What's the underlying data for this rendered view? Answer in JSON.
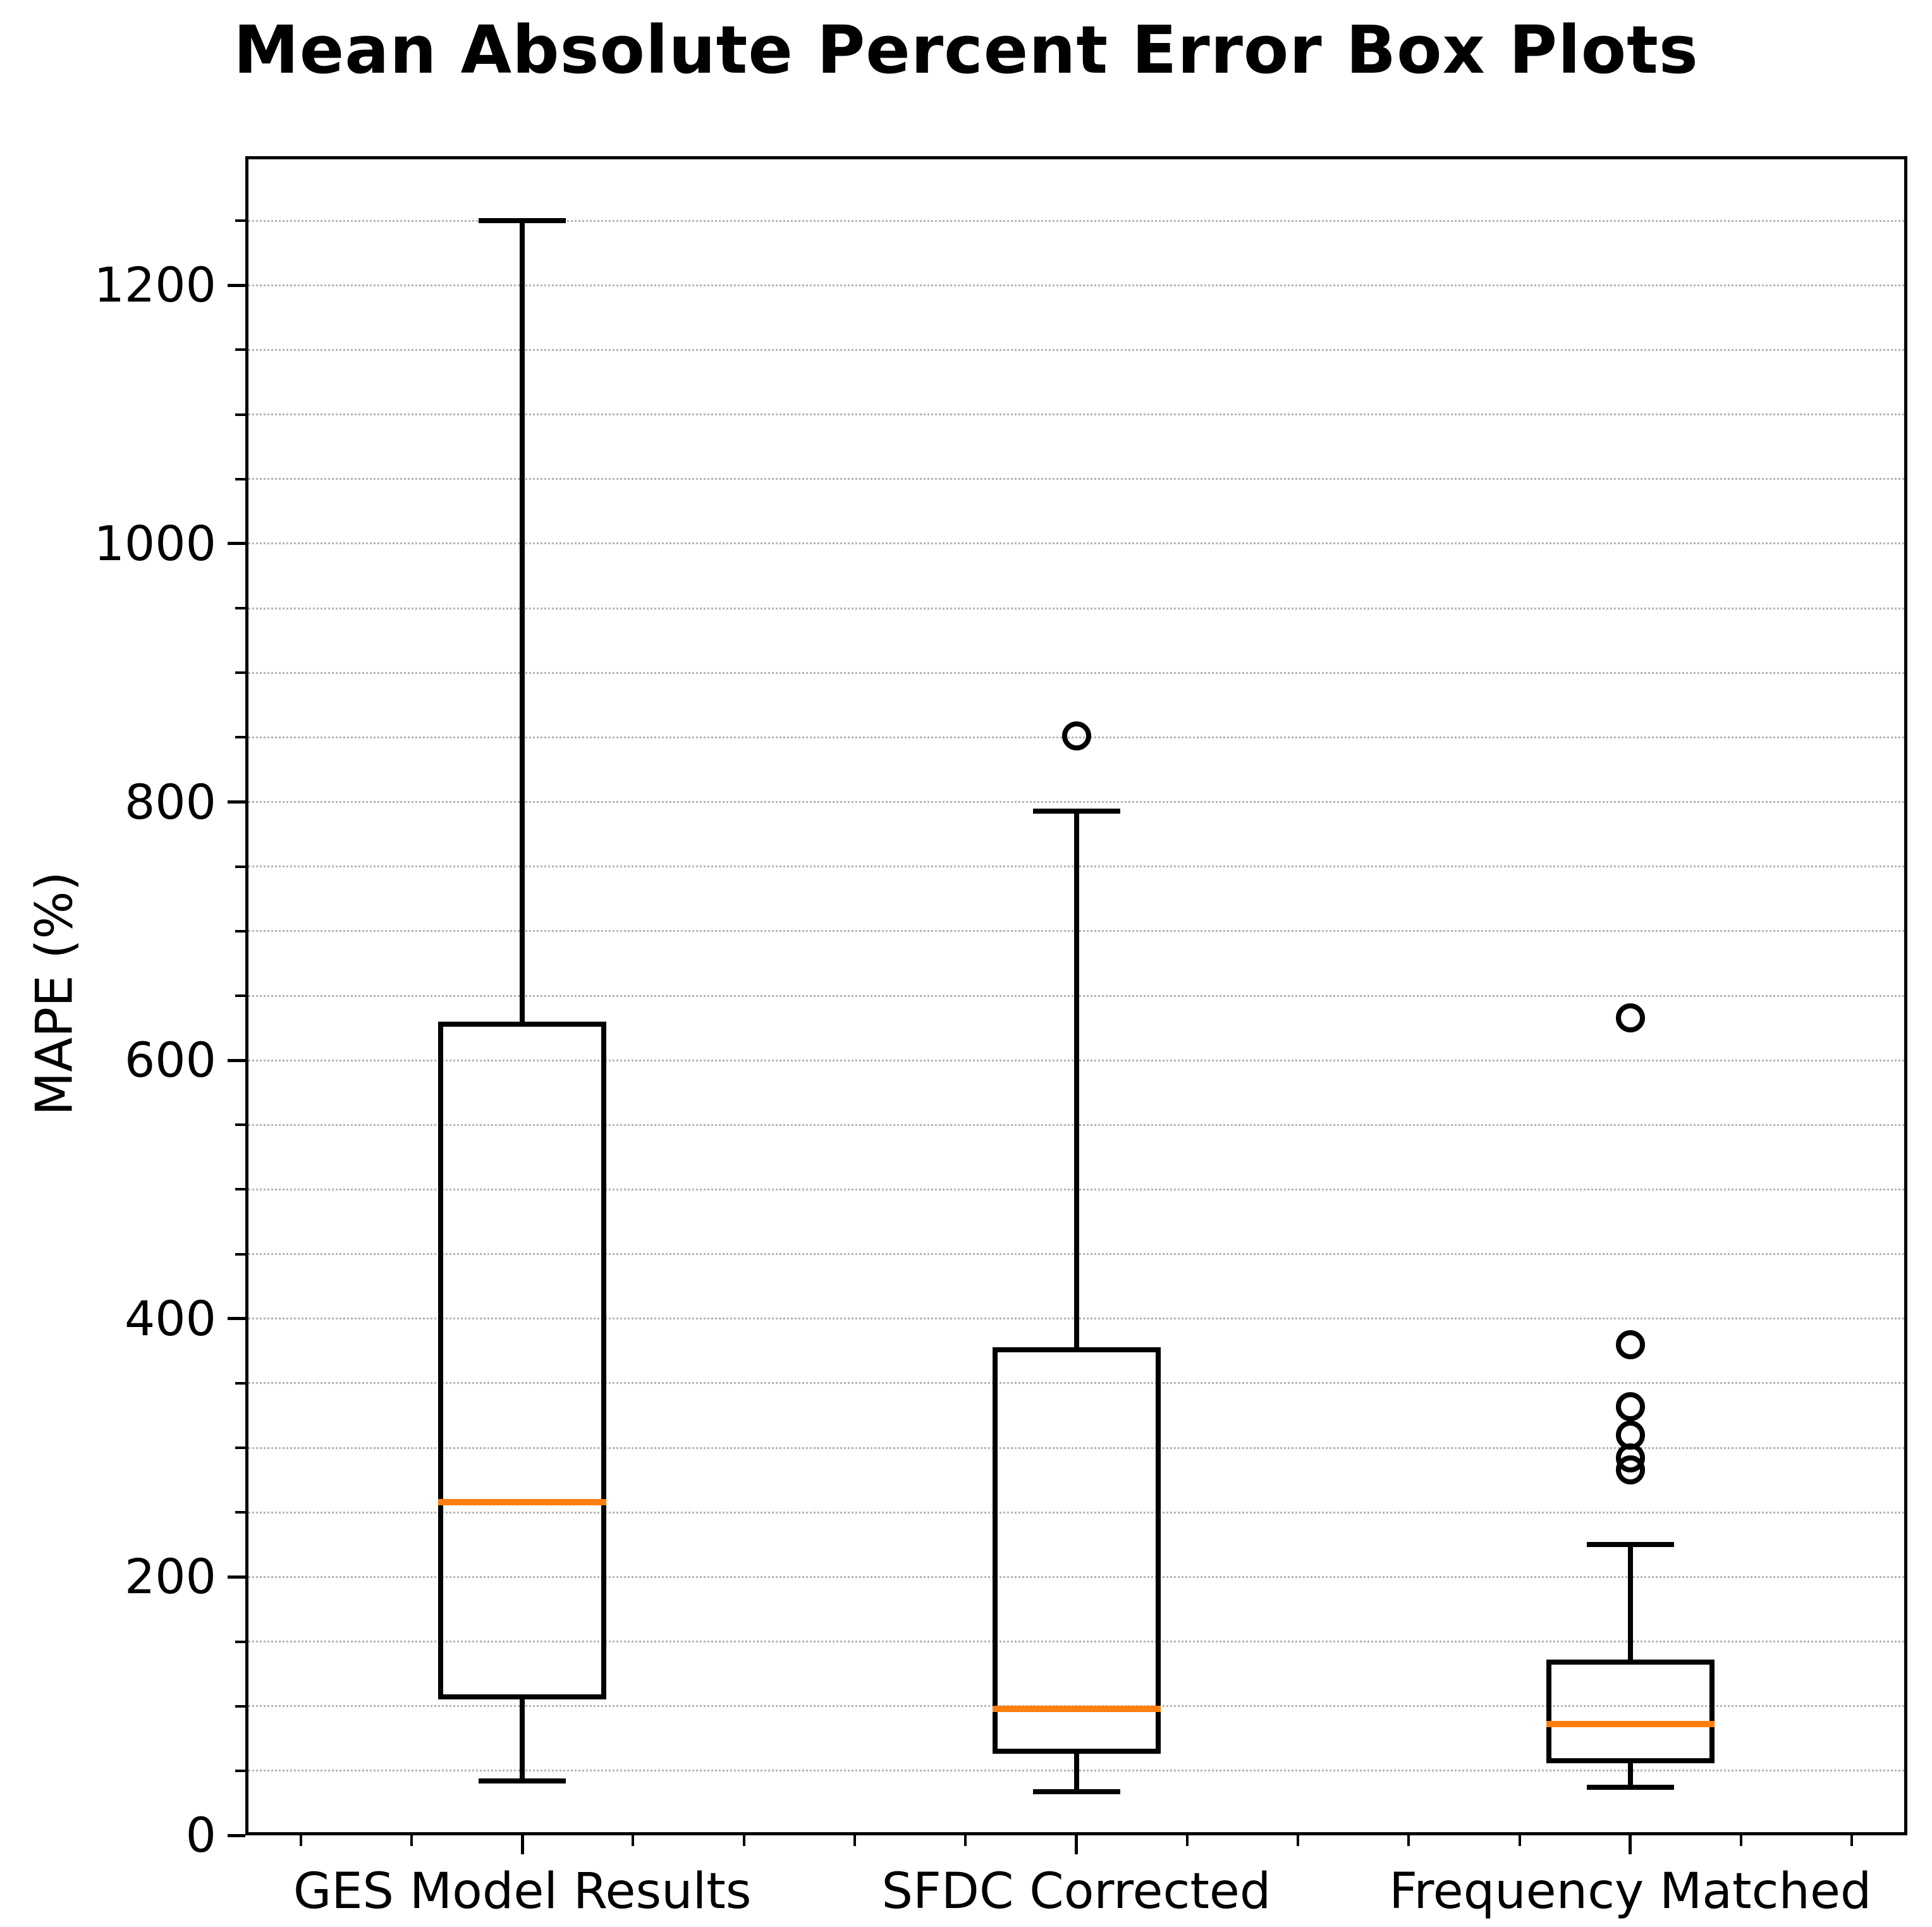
{
  "chart_data": {
    "type": "boxplot",
    "title": "Mean Absolute Percent Error Box Plots",
    "ylabel": "MAPE (%)",
    "xlabel": "",
    "ylim": [
      0,
      1300
    ],
    "y_major_ticks": [
      0,
      200,
      400,
      600,
      800,
      1000,
      1200
    ],
    "y_minor_step": 50,
    "x_minor_step_units": 0.2,
    "grid": "horizontal dotted gridlines every 50 units",
    "legend_position": "none",
    "categories": [
      "GES Model Results",
      "SFDC Corrected",
      "Frequency Matched"
    ],
    "series": [
      {
        "name": "GES Model Results",
        "whisker_low": 42,
        "q1": 105,
        "median": 258,
        "q3": 630,
        "whisker_high": 1250,
        "outliers": []
      },
      {
        "name": "SFDC Corrected",
        "whisker_low": 34,
        "q1": 63,
        "median": 98,
        "q3": 378,
        "whisker_high": 793,
        "outliers": [
          851
        ]
      },
      {
        "name": "Frequency Matched",
        "whisker_low": 37,
        "q1": 56,
        "median": 86,
        "q3": 136,
        "whisker_high": 225,
        "outliers": [
          283,
          292,
          310,
          332,
          380,
          633
        ]
      }
    ],
    "colors": {
      "median": "#ff7f0e",
      "line": "#000000",
      "grid": "#b3b3b3",
      "background": "#ffffff",
      "text": "#000000"
    }
  }
}
